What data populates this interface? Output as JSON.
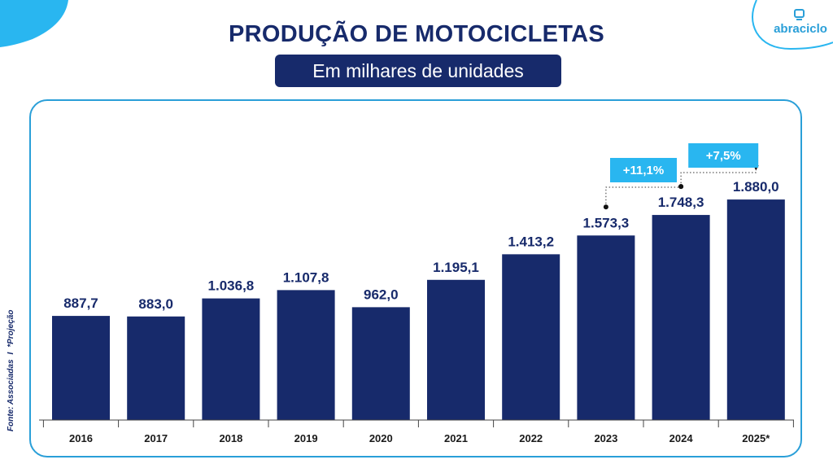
{
  "header": {
    "title": "PRODUÇÃO DE MOTOCICLETAS",
    "subtitle": "Em milhares de unidades",
    "logo_text": "abraciclo"
  },
  "footnote": {
    "source": "Fonte: Associadas",
    "separator": "I",
    "projection": "*Projeção"
  },
  "colors": {
    "bar": "#172a6b",
    "accent": "#29b6f0",
    "frame": "#2a9fd8"
  },
  "chart_data": {
    "type": "bar",
    "title": "PRODUÇÃO DE MOTOCICLETAS",
    "subtitle": "Em milhares de unidades",
    "xlabel": "",
    "ylabel": "",
    "categories": [
      "2016",
      "2017",
      "2018",
      "2019",
      "2020",
      "2021",
      "2022",
      "2023",
      "2024",
      "2025*"
    ],
    "values": [
      887.7,
      883.0,
      1036.8,
      1107.8,
      962.0,
      1195.1,
      1413.2,
      1573.3,
      1748.3,
      1880.0
    ],
    "data_labels": [
      "887,7",
      "883,0",
      "1.036,8",
      "1.107,8",
      "962,0",
      "1.195,1",
      "1.413,2",
      "1.573,3",
      "1.748,3",
      "1.880,0"
    ],
    "ylim": [
      0,
      2000
    ],
    "grid": false,
    "annotations": [
      {
        "from": "2023",
        "to": "2024",
        "label": "+11,1%"
      },
      {
        "from": "2024",
        "to": "2025*",
        "label": "+7,5%"
      }
    ]
  }
}
